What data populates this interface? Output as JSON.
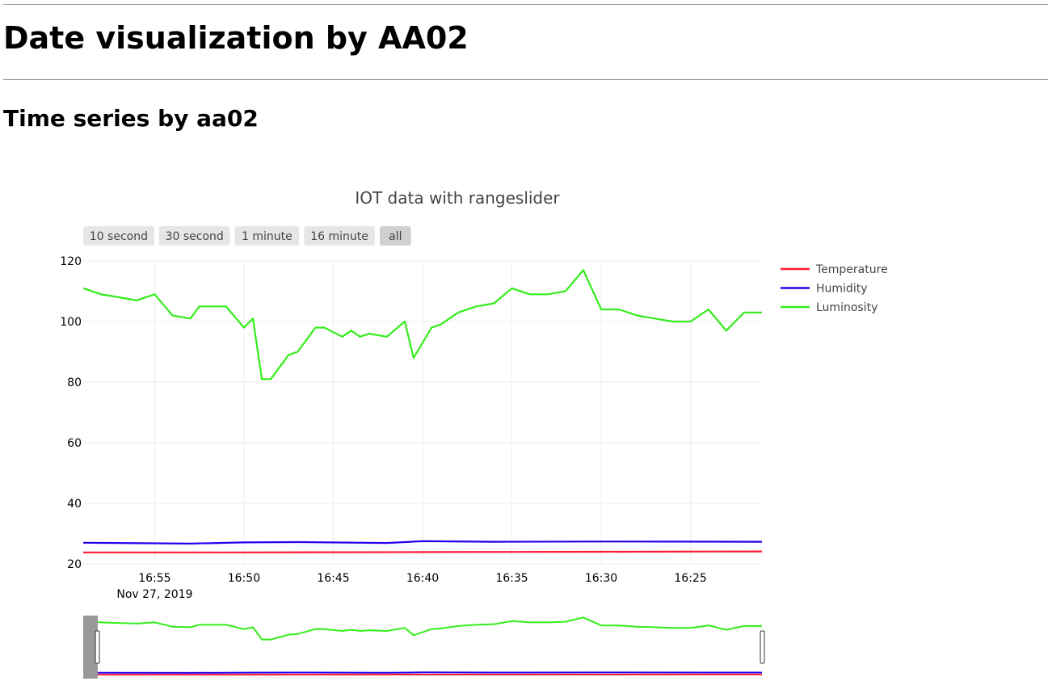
{
  "page": {
    "heading": "Date visualization by AA02",
    "subheading": "Time series by aa02"
  },
  "chart_data": {
    "type": "line",
    "title": "IOT data with rangeslider",
    "x_axis": {
      "type": "time",
      "reversed": true,
      "range": [
        "2019-11-27 16:59",
        "2019-11-27 16:21"
      ],
      "tick_labels": [
        "16:55",
        "16:50",
        "16:45",
        "16:40",
        "16:35",
        "16:30",
        "16:25"
      ],
      "date_label": "Nov 27, 2019"
    },
    "y_axis": {
      "range": [
        20,
        120
      ],
      "ticks": [
        20,
        40,
        60,
        80,
        100,
        120
      ]
    },
    "grid": true,
    "legend": {
      "position": "right"
    },
    "range_buttons": [
      "10 second",
      "30 second",
      "1 minute",
      "16 minute",
      "all"
    ],
    "active_button": "all",
    "rangeslider": true,
    "series": [
      {
        "name": "Temperature",
        "color": "#ff1a33",
        "x": [
          "16:59",
          "16:50",
          "16:40",
          "16:30",
          "16:21"
        ],
        "y": [
          23.8,
          23.8,
          23.9,
          24.0,
          24.1
        ]
      },
      {
        "name": "Humidity",
        "color": "#2200ee",
        "x": [
          "16:59",
          "16:53",
          "16:50",
          "16:47",
          "16:42",
          "16:40",
          "16:36",
          "16:30",
          "16:21"
        ],
        "y": [
          27.0,
          26.7,
          27.1,
          27.2,
          26.9,
          27.5,
          27.3,
          27.4,
          27.3
        ]
      },
      {
        "name": "Luminosity",
        "color": "#33ee1a",
        "x": [
          "16:59",
          "16:58",
          "16:57",
          "16:56",
          "16:55",
          "16:54",
          "16:53",
          "16:52.5",
          "16:51",
          "16:50",
          "16:49.5",
          "16:49",
          "16:48.5",
          "16:47.5",
          "16:47",
          "16:46",
          "16:45.5",
          "16:44.5",
          "16:44",
          "16:43.5",
          "16:43",
          "16:42",
          "16:41",
          "16:40.5",
          "16:39.5",
          "16:39",
          "16:38",
          "16:37",
          "16:36",
          "16:35",
          "16:34",
          "16:33",
          "16:32",
          "16:31",
          "16:30",
          "16:29",
          "16:28",
          "16:27",
          "16:26",
          "16:25",
          "16:24",
          "16:23",
          "16:22",
          "16:21"
        ],
        "y": [
          111,
          109,
          108,
          107,
          109,
          102,
          101,
          105,
          105,
          98,
          101,
          81,
          81,
          89,
          90,
          98,
          98,
          95,
          97,
          95,
          96,
          95,
          100,
          88,
          98,
          99,
          103,
          105,
          106,
          111,
          109,
          109,
          110,
          117,
          104,
          104,
          102,
          101,
          100,
          100,
          104,
          97,
          103,
          103
        ]
      }
    ]
  }
}
